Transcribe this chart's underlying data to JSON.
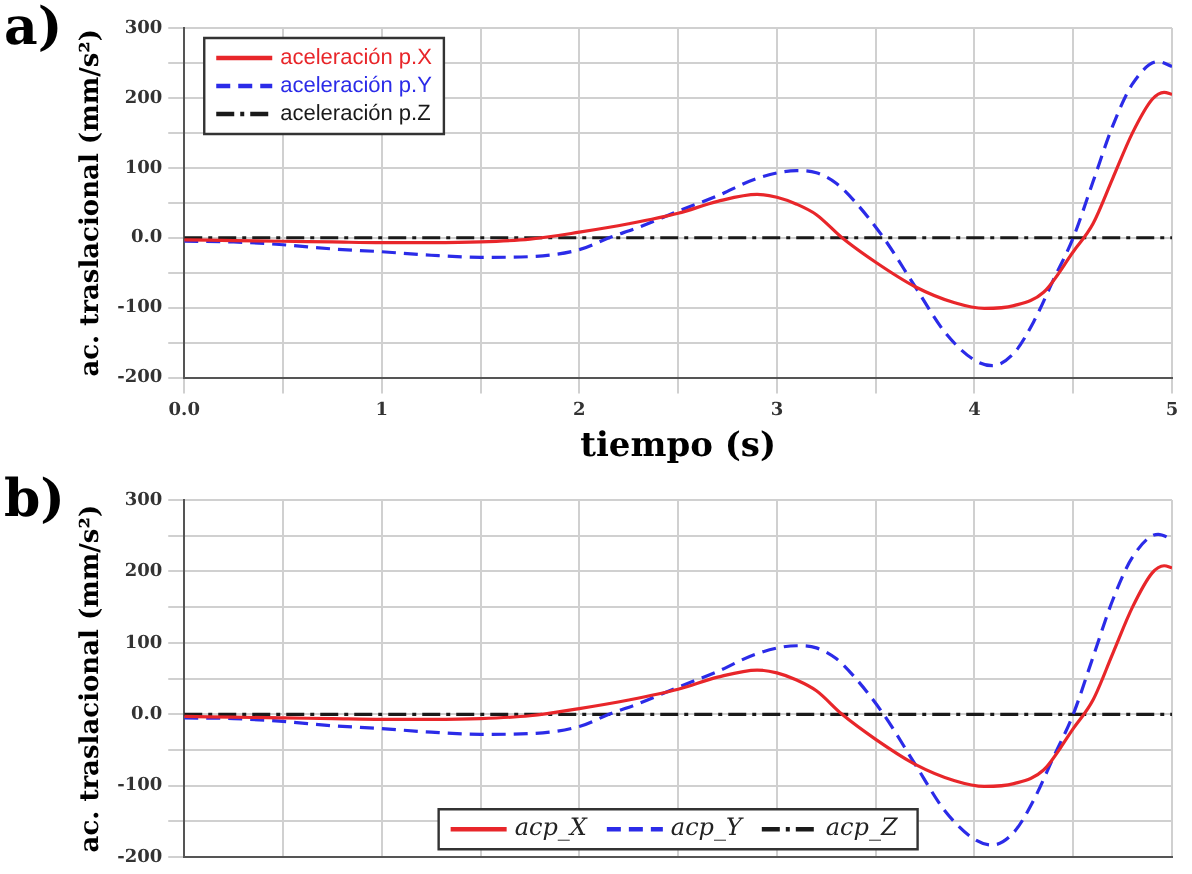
{
  "chart_data": [
    {
      "type": "line",
      "title": "a)",
      "xlabel": "tiempo (s)",
      "ylabel": "ac. traslacional (mm/s²)",
      "legend": "top left",
      "grid": true,
      "marker": "none",
      "xlim": [
        0,
        5
      ],
      "ylim": [
        -200,
        300
      ],
      "xticks": [
        {
          "value": 0,
          "label": "0.0"
        },
        {
          "value": 0.5,
          "label": null
        },
        1,
        {
          "value": 1.5,
          "label": null
        },
        2,
        {
          "value": 2.5,
          "label": null
        },
        3,
        {
          "value": 3.5,
          "label": null
        },
        4,
        {
          "value": 4.5,
          "label": null
        },
        5
      ],
      "yticks": [
        -200,
        {
          "value": -150,
          "label": null
        },
        -100,
        {
          "value": -50,
          "label": null
        },
        {
          "value": 0,
          "label": "0.0"
        },
        {
          "value": 50,
          "label": null
        },
        100,
        {
          "value": 150,
          "label": null
        },
        200,
        {
          "value": 250,
          "label": null
        },
        300
      ],
      "series": [
        {
          "name": "aceleración p.X",
          "color": "#e8262a",
          "line_style": "solid",
          "x": [
            0,
            0.25,
            0.5,
            0.75,
            1,
            1.25,
            1.5,
            1.75,
            2,
            2.25,
            2.5,
            2.7,
            2.9,
            3.0,
            3.1,
            3.2,
            3.33,
            3.5,
            3.7,
            3.9,
            4.05,
            4.2,
            4.35,
            4.5,
            4.6,
            4.7,
            4.8,
            4.9,
            4.96,
            5
          ],
          "values": [
            -3,
            -4,
            -5,
            -6,
            -7,
            -7,
            -6,
            -2,
            8,
            20,
            35,
            52,
            62,
            58,
            48,
            33,
            0,
            -35,
            -70,
            -93,
            -101,
            -97,
            -78,
            -20,
            20,
            85,
            150,
            198,
            208,
            205
          ]
        },
        {
          "name": "aceleración p.Y",
          "color": "#2b2be8",
          "line_style": "dashed",
          "x": [
            0,
            0.25,
            0.5,
            0.75,
            1,
            1.25,
            1.5,
            1.75,
            2,
            2.15,
            2.3,
            2.5,
            2.7,
            2.9,
            3.1,
            3.2,
            3.3,
            3.4,
            3.54,
            3.7,
            3.85,
            4,
            4.09,
            4.2,
            4.3,
            4.4,
            4.5,
            4.6,
            4.7,
            4.8,
            4.93,
            5
          ],
          "values": [
            -5,
            -6,
            -10,
            -16,
            -20,
            -25,
            -28,
            -27,
            -17,
            0,
            15,
            38,
            60,
            85,
            96,
            93,
            78,
            50,
            0,
            -70,
            -135,
            -175,
            -183,
            -165,
            -120,
            -60,
            0,
            80,
            160,
            220,
            252,
            245
          ]
        },
        {
          "name": "aceleración p.Z",
          "color": "#1a1a1a",
          "line_style": "dashdot",
          "x": [
            0,
            5
          ],
          "values": [
            0,
            0
          ]
        }
      ]
    },
    {
      "type": "line",
      "title": "b)",
      "ylabel": "ac. traslacional (mm/s²)",
      "legend": "bottom",
      "grid": true,
      "marker": "none",
      "tick_labels": "y",
      "xlim": [
        0,
        5
      ],
      "ylim": [
        -200,
        300
      ],
      "xticks": [
        0,
        0.5,
        1,
        1.5,
        2,
        2.5,
        3,
        3.5,
        4,
        4.5,
        5
      ],
      "yticks": [
        -200,
        {
          "value": -150,
          "label": null
        },
        -100,
        {
          "value": -50,
          "label": null
        },
        {
          "value": 0,
          "label": "0.0"
        },
        {
          "value": 50,
          "label": null
        },
        100,
        {
          "value": 150,
          "label": null
        },
        200,
        {
          "value": 250,
          "label": null
        },
        300
      ],
      "series": [
        {
          "name": "acp_X",
          "color": "#e8262a",
          "line_style": "solid",
          "x": [
            0,
            0.25,
            0.5,
            0.75,
            1,
            1.25,
            1.5,
            1.75,
            2,
            2.25,
            2.5,
            2.7,
            2.9,
            3.0,
            3.1,
            3.2,
            3.33,
            3.5,
            3.7,
            3.9,
            4.05,
            4.2,
            4.35,
            4.5,
            4.6,
            4.7,
            4.8,
            4.9,
            4.96,
            5
          ],
          "values": [
            -3,
            -4,
            -5,
            -6,
            -7,
            -7,
            -6,
            -2,
            8,
            20,
            35,
            52,
            62,
            58,
            48,
            33,
            0,
            -35,
            -70,
            -93,
            -101,
            -97,
            -78,
            -20,
            20,
            85,
            150,
            198,
            208,
            205
          ]
        },
        {
          "name": "acp_Y",
          "color": "#2b2be8",
          "line_style": "dashed",
          "x": [
            0,
            0.25,
            0.5,
            0.75,
            1,
            1.25,
            1.5,
            1.75,
            2,
            2.15,
            2.3,
            2.5,
            2.7,
            2.9,
            3.1,
            3.2,
            3.3,
            3.4,
            3.54,
            3.7,
            3.85,
            4,
            4.09,
            4.2,
            4.3,
            4.4,
            4.5,
            4.6,
            4.7,
            4.8,
            4.93,
            5
          ],
          "values": [
            -5,
            -6,
            -10,
            -16,
            -20,
            -25,
            -28,
            -27,
            -17,
            0,
            15,
            38,
            60,
            85,
            96,
            93,
            78,
            50,
            0,
            -70,
            -135,
            -175,
            -183,
            -165,
            -120,
            -60,
            0,
            80,
            160,
            220,
            252,
            245
          ]
        },
        {
          "name": "acp_Z",
          "color": "#1a1a1a",
          "line_style": "dashdot",
          "x": [
            0,
            5
          ],
          "values": [
            0,
            0
          ]
        }
      ]
    }
  ]
}
